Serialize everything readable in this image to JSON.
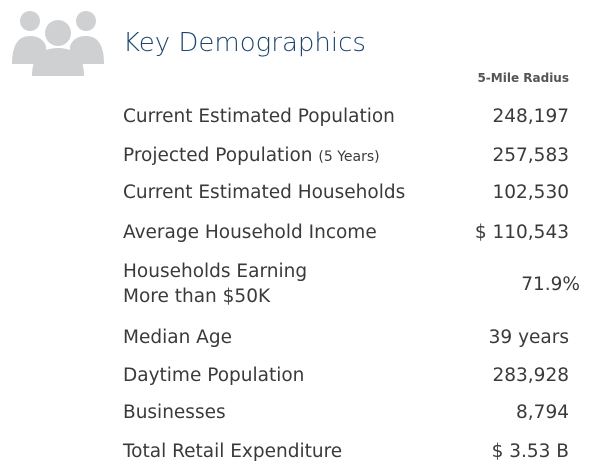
{
  "header": {
    "title": "Key Demographics"
  },
  "table": {
    "column_header": "5-Mile Radius",
    "rows": [
      {
        "label": "Current Estimated Population",
        "value": "248,197"
      },
      {
        "label": "Projected Population",
        "note": "(5 Years)",
        "value": "257,583"
      },
      {
        "label": "Current Estimated Households",
        "value": "102,530"
      },
      {
        "label": "Average Household Income",
        "value": "$ 110,543"
      },
      {
        "label": [
          "Households Earning",
          "More than $50K"
        ],
        "value": "71.9%"
      },
      {
        "label": "Median Age",
        "value": "39 years"
      },
      {
        "label": "Daytime Population",
        "value": "283,928"
      },
      {
        "label": "Businesses",
        "value": "8,794"
      },
      {
        "label": "Total Retail Expenditure",
        "value": "$ 3.53 B"
      }
    ]
  }
}
